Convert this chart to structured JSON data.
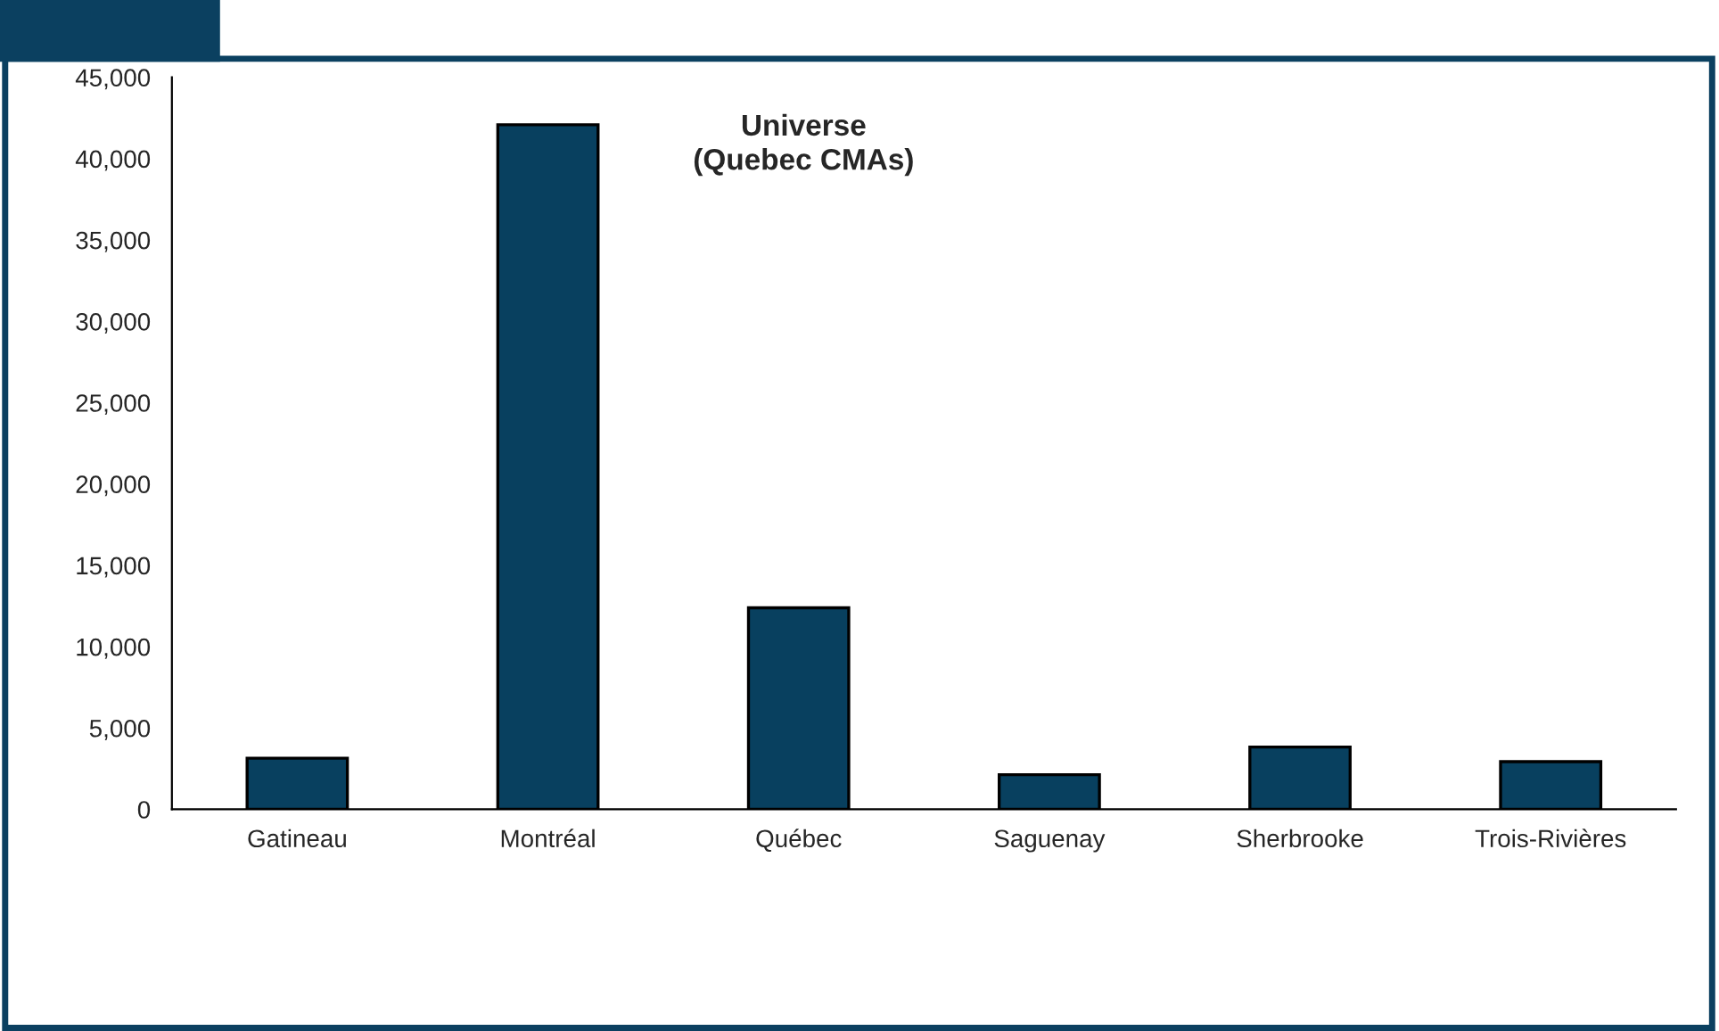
{
  "chart_data": {
    "type": "bar",
    "title": "Universe\n(Quebec CMAs)",
    "categories": [
      "Gatineau",
      "Montréal",
      "Québec",
      "Saguenay",
      "Sherbrooke",
      "Trois-Rivières"
    ],
    "values": [
      3140,
      42080,
      12390,
      2130,
      3830,
      2930
    ],
    "color": "#08405f",
    "ylim": [
      0,
      45000
    ],
    "yticks": [
      {
        "value": 0,
        "label": "0"
      },
      {
        "value": 5000,
        "label": "5,000"
      },
      {
        "value": 10000,
        "label": "10,000"
      },
      {
        "value": 15000,
        "label": "15,000"
      },
      {
        "value": 20000,
        "label": "20,000"
      },
      {
        "value": 25000,
        "label": "25,000"
      },
      {
        "value": 30000,
        "label": "30,000"
      },
      {
        "value": 35000,
        "label": "35,000"
      },
      {
        "value": 40000,
        "label": "40,000"
      },
      {
        "value": 45000,
        "label": "45,000"
      }
    ],
    "grid": false
  }
}
